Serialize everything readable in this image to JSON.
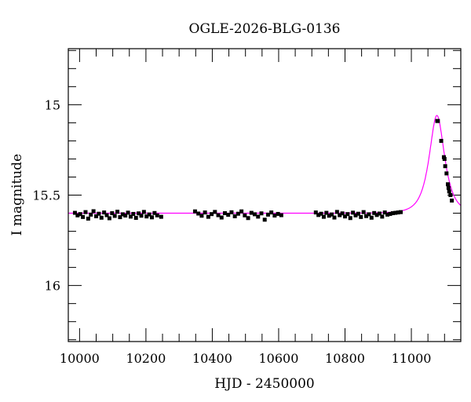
{
  "chart_data": {
    "type": "scatter",
    "title": "OGLE-2026-BLG-0136",
    "xlabel": "HJD - 2450000",
    "ylabel": "I magnitude",
    "xlim": [
      9966,
      11149
    ],
    "ylim": [
      16.31,
      14.69
    ],
    "y_inverted": true,
    "xticks": [
      10000,
      10200,
      10400,
      10600,
      10800,
      11000
    ],
    "xtick_labels": [
      "10000",
      "10200",
      "10400",
      "10600",
      "10800",
      "11000"
    ],
    "yticks": [
      15,
      15.5,
      16
    ],
    "ytick_labels": [
      "15",
      "15.5",
      "16"
    ],
    "grid": false,
    "series": [
      {
        "name": "observations",
        "color": "#000000",
        "x": [
          9986,
          9994,
          10002,
          10010,
          10018,
          10026,
          10034,
          10042,
          10050,
          10058,
          10066,
          10074,
          10082,
          10090,
          10098,
          10106,
          10114,
          10122,
          10130,
          10138,
          10146,
          10154,
          10162,
          10170,
          10178,
          10186,
          10194,
          10202,
          10210,
          10218,
          10226,
          10234,
          10246,
          10348,
          10358,
          10368,
          10378,
          10388,
          10398,
          10408,
          10418,
          10428,
          10438,
          10448,
          10458,
          10468,
          10478,
          10488,
          10498,
          10508,
          10518,
          10528,
          10538,
          10548,
          10558,
          10568,
          10578,
          10588,
          10598,
          10608,
          10712,
          10720,
          10728,
          10736,
          10744,
          10752,
          10760,
          10768,
          10776,
          10784,
          10792,
          10800,
          10808,
          10816,
          10824,
          10832,
          10840,
          10848,
          10856,
          10864,
          10872,
          10880,
          10888,
          10896,
          10904,
          10912,
          10920,
          10928,
          10936,
          10944,
          10952,
          10960,
          10968,
          11078,
          11080,
          11090,
          11098,
          11100,
          11102,
          11106,
          11110,
          11112,
          11114,
          11118,
          11122
        ],
        "y": [
          15.598,
          15.612,
          15.605,
          15.621,
          15.594,
          15.63,
          15.608,
          15.589,
          15.617,
          15.603,
          15.625,
          15.596,
          15.611,
          15.628,
          15.6,
          15.615,
          15.592,
          15.622,
          15.606,
          15.613,
          15.597,
          15.619,
          15.604,
          15.626,
          15.601,
          15.614,
          15.593,
          15.618,
          15.607,
          15.623,
          15.599,
          15.612,
          15.62,
          15.59,
          15.602,
          15.614,
          15.596,
          15.62,
          15.605,
          15.593,
          15.611,
          15.624,
          15.6,
          15.609,
          15.595,
          15.617,
          15.603,
          15.59,
          15.612,
          15.627,
          15.598,
          15.606,
          15.619,
          15.601,
          15.636,
          15.608,
          15.596,
          15.613,
          15.604,
          15.611,
          15.596,
          15.61,
          15.603,
          15.62,
          15.598,
          15.614,
          15.607,
          15.624,
          15.593,
          15.611,
          15.601,
          15.618,
          15.605,
          15.627,
          15.597,
          15.612,
          15.603,
          15.621,
          15.594,
          15.616,
          15.606,
          15.625,
          15.599,
          15.61,
          15.602,
          15.619,
          15.596,
          15.608,
          15.604,
          15.6,
          15.598,
          15.596,
          15.594,
          15.09,
          15.09,
          15.2,
          15.29,
          15.3,
          15.34,
          15.38,
          15.44,
          15.46,
          15.48,
          15.5,
          15.53
        ]
      },
      {
        "name": "model",
        "type": "line",
        "color": "#ff00ff",
        "model": "paczynski",
        "params": {
          "t0": 11077,
          "u0": 0.72,
          "tE": 33,
          "I0": 15.6
        }
      }
    ]
  }
}
